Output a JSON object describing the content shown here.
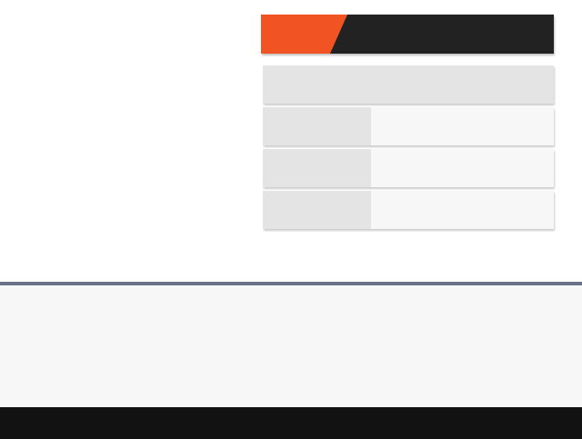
{
  "header": {
    "tab_label": "",
    "title": ""
  },
  "table": {
    "heading": "",
    "rows": [
      {
        "label": "",
        "value": ""
      },
      {
        "label": "",
        "value": ""
      },
      {
        "label": "",
        "value": ""
      }
    ]
  },
  "footer": {
    "text": ""
  },
  "colors": {
    "accent": "#f15322",
    "header_dark": "#222222",
    "divider": "#6a7488",
    "footer_bar": "#121212"
  }
}
